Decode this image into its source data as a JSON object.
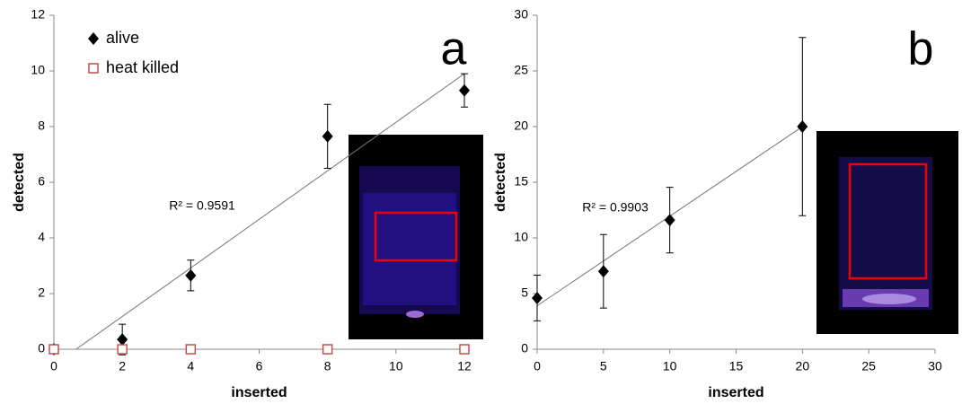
{
  "chart_data": [
    {
      "type": "scatter",
      "panel": "a",
      "x_label": "inserted",
      "y_label": "detected",
      "annotation": "R² = 0.9591",
      "xlim": [
        0,
        12
      ],
      "ylim": [
        0,
        12
      ],
      "xticks": [
        0,
        2,
        4,
        6,
        8,
        10,
        12
      ],
      "yticks": [
        0,
        2,
        4,
        6,
        8,
        10,
        12
      ],
      "series": [
        {
          "name": "alive",
          "color": "#000000",
          "marker": "diamond",
          "x": [
            0,
            2,
            4,
            8,
            12
          ],
          "values": [
            0,
            0.35,
            2.65,
            7.65,
            9.3
          ],
          "errors": [
            0,
            0.55,
            0.55,
            1.15,
            0.6
          ]
        },
        {
          "name": "heat killed",
          "color": "#c0504d",
          "marker": "square",
          "x": [
            0,
            2,
            4,
            8,
            12
          ],
          "values": [
            0,
            0,
            0,
            0,
            0
          ]
        }
      ],
      "trendline": {
        "x": [
          0.65,
          12
        ],
        "y": [
          0,
          9.9
        ]
      }
    },
    {
      "type": "scatter",
      "panel": "b",
      "x_label": "inserted",
      "y_label": "detected",
      "annotation": "R² = 0.9903",
      "xlim": [
        0,
        30
      ],
      "ylim": [
        0,
        30
      ],
      "xticks": [
        0,
        5,
        10,
        15,
        20,
        25,
        30
      ],
      "yticks": [
        0,
        5,
        10,
        15,
        20,
        25,
        30
      ],
      "series": [
        {
          "color": "#000000",
          "marker": "diamond",
          "x": [
            0,
            5,
            10,
            20
          ],
          "values": [
            4.6,
            7.0,
            11.6,
            20
          ],
          "errors": [
            2.05,
            3.3,
            2.95,
            8
          ]
        }
      ],
      "trendline": {
        "x": [
          0,
          20
        ],
        "y": [
          3.9,
          20
        ]
      }
    }
  ]
}
